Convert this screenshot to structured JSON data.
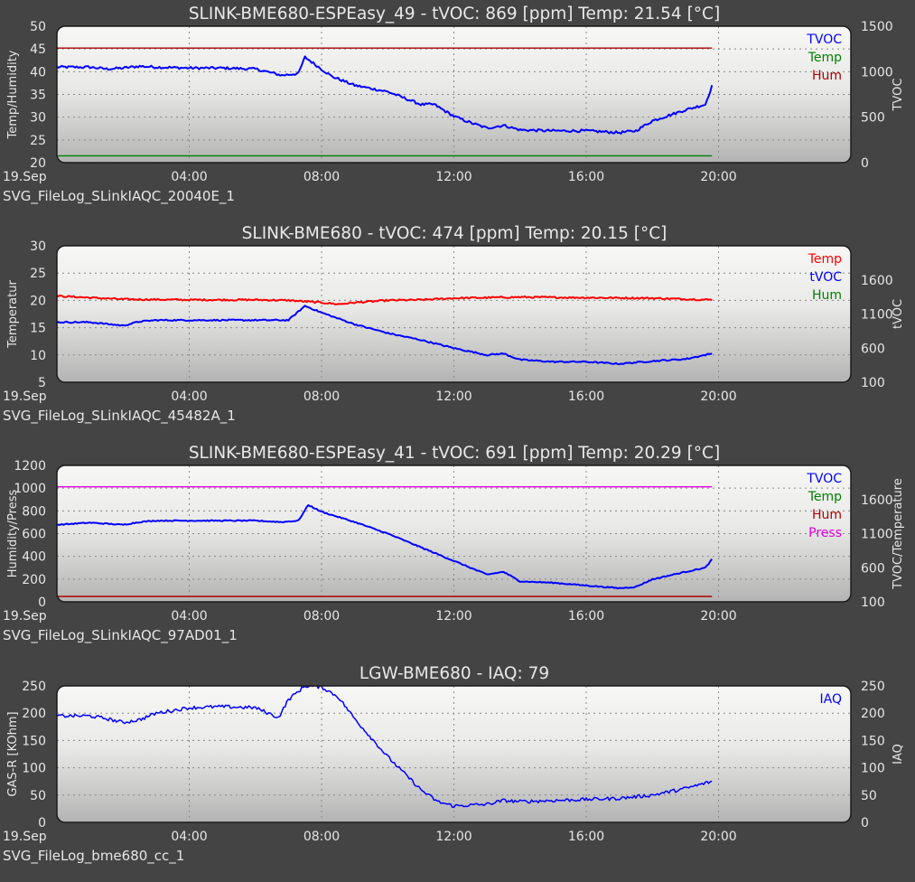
{
  "colors": {
    "page_bg": "#444444",
    "plot_top": "#f7f7f5",
    "plot_bottom": "#b3b3b3",
    "grid": "#888888",
    "text": "#e6e6e6",
    "blue": "#0000ff",
    "green": "#008000",
    "dark_red": "#aa0000",
    "red": "#ff0000",
    "magenta": "#e000e0"
  },
  "chart_data": [
    {
      "type": "line",
      "title": "SLINK-BME680-ESPEasy_49 - tVOC: 869 [ppm] Temp: 21.54 [°C]",
      "filelog": "SVG_FileLog_SLinkIAQC_20040E_1",
      "x_ticks": [
        "19.Sep",
        "04:00",
        "08:00",
        "12:00",
        "16:00",
        "20:00"
      ],
      "xlim": [
        0,
        24
      ],
      "grid": true,
      "legend_placement": "top-right",
      "left_axis": {
        "label": "Temp/Humidity",
        "ylim": [
          20,
          50
        ],
        "ticks": [
          "20",
          "25",
          "30",
          "35",
          "40",
          "45",
          "50"
        ]
      },
      "right_axis": {
        "label": "TVOC",
        "ylim": [
          0,
          1500
        ],
        "ticks": [
          "0",
          "500",
          "1000",
          "1500"
        ]
      },
      "series": [
        {
          "name": "TVOC",
          "color": "#0000ff",
          "axis": "right",
          "noise": 14,
          "width": 2,
          "x": [
            0,
            1,
            1.5,
            2,
            2.5,
            3,
            4,
            5,
            6,
            6.8,
            7.3,
            7.5,
            7.8,
            8.3,
            9,
            10,
            11,
            11.4,
            12,
            12.5,
            13,
            13.5,
            14,
            15,
            16,
            17,
            17.5,
            18,
            18.5,
            19,
            19.6,
            19.8
          ],
          "y": [
            1050,
            1050,
            1030,
            1040,
            1060,
            1050,
            1040,
            1040,
            1030,
            960,
            980,
            1160,
            1080,
            950,
            850,
            780,
            640,
            640,
            510,
            440,
            380,
            410,
            360,
            350,
            350,
            330,
            350,
            460,
            520,
            580,
            640,
            840
          ]
        },
        {
          "name": "Temp",
          "color": "#008000",
          "axis": "left",
          "noise": 0,
          "width": 1.4,
          "x": [
            0,
            19.8
          ],
          "y": [
            21.5,
            21.5
          ]
        },
        {
          "name": "Hum",
          "color": "#aa0000",
          "axis": "left",
          "noise": 0,
          "width": 1.4,
          "x": [
            0,
            19.8
          ],
          "y": [
            45.2,
            45.2
          ]
        }
      ]
    },
    {
      "type": "line",
      "title": "SLINK-BME680 - tVOC: 474 [ppm] Temp: 20.15 [°C]",
      "filelog": "SVG_FileLog_SLinkIAQC_45482A_1",
      "x_ticks": [
        "19.Sep",
        "04:00",
        "08:00",
        "12:00",
        "16:00",
        "20:00"
      ],
      "xlim": [
        0,
        24
      ],
      "grid": true,
      "legend_placement": "top-right",
      "left_axis": {
        "label": "Temperatur",
        "ylim": [
          5,
          30
        ],
        "ticks": [
          "5",
          "10",
          "15",
          "20",
          "25",
          "30"
        ]
      },
      "right_axis": {
        "label": "tVOC",
        "ylim": [
          100,
          2100
        ],
        "ticks": [
          "100",
          "600",
          "1100",
          "1600"
        ]
      },
      "series": [
        {
          "name": "Temp",
          "color": "#ff0000",
          "axis": "left",
          "noise": 0.15,
          "width": 2,
          "x": [
            0,
            1,
            2,
            4,
            6,
            7,
            7.5,
            8,
            8.5,
            9,
            10,
            11,
            12,
            13,
            14,
            16,
            18,
            19.8
          ],
          "y": [
            20.8,
            20.5,
            20.2,
            20.1,
            20.1,
            20.0,
            19.8,
            19.6,
            19.3,
            19.6,
            20.0,
            20.1,
            20.4,
            20.5,
            20.6,
            20.5,
            20.4,
            20.1
          ]
        },
        {
          "name": "tVOC",
          "color": "#0000ff",
          "axis": "right",
          "noise": 10,
          "width": 2,
          "x": [
            0,
            1,
            2,
            2.5,
            3,
            4,
            5,
            6,
            7,
            7.5,
            8,
            9,
            10,
            11,
            12,
            13,
            13.5,
            14,
            15,
            16,
            17,
            17.5,
            18,
            19,
            19.8
          ],
          "y": [
            980,
            980,
            930,
            990,
            1010,
            1010,
            1010,
            1010,
            1010,
            1220,
            1120,
            950,
            820,
            720,
            600,
            500,
            520,
            430,
            400,
            400,
            370,
            390,
            410,
            440,
            520
          ]
        },
        {
          "name": "Hum",
          "color": "#008000",
          "axis": "left",
          "noise": 0,
          "width": 1.4,
          "x": [],
          "y": []
        }
      ]
    },
    {
      "type": "line",
      "title": "SLINK-BME680-ESPEasy_41 - tVOC: 691 [ppm] Temp: 20.29 [°C]",
      "filelog": "SVG_FileLog_SLinkIAQC_97AD01_1",
      "x_ticks": [
        "19.Sep",
        "04:00",
        "08:00",
        "12:00",
        "16:00",
        "20:00"
      ],
      "xlim": [
        0,
        24
      ],
      "grid": true,
      "legend_placement": "top-right",
      "left_axis": {
        "label": "Humidity/Press",
        "ylim": [
          0,
          1200
        ],
        "ticks": [
          "0",
          "200",
          "400",
          "600",
          "800",
          "1000",
          "1200"
        ]
      },
      "right_axis": {
        "label": "TVOC/Temperature",
        "ylim": [
          100,
          2100
        ],
        "ticks": [
          "100",
          "600",
          "1100",
          "1600"
        ]
      },
      "series": [
        {
          "name": "TVOC",
          "color": "#0000ff",
          "axis": "right",
          "noise": 8,
          "width": 2,
          "x": [
            0,
            1,
            2,
            2.5,
            3,
            4,
            5,
            6,
            6.8,
            7.3,
            7.6,
            8,
            9,
            10,
            11,
            12,
            13,
            13.5,
            14,
            15,
            16,
            17,
            17.5,
            18,
            19,
            19.6,
            19.8
          ],
          "y": [
            1230,
            1260,
            1230,
            1270,
            1290,
            1290,
            1290,
            1290,
            1270,
            1290,
            1520,
            1420,
            1270,
            1100,
            900,
            700,
            500,
            540,
            400,
            380,
            340,
            300,
            320,
            430,
            540,
            600,
            720
          ]
        },
        {
          "name": "Temp",
          "color": "#008000",
          "axis": "right",
          "noise": 0,
          "width": 1.4,
          "x": [],
          "y": []
        },
        {
          "name": "Hum",
          "color": "#aa0000",
          "axis": "left",
          "noise": 0,
          "width": 1.4,
          "x": [
            0,
            19.8
          ],
          "y": [
            48,
            48
          ]
        },
        {
          "name": "Press",
          "color": "#e000e0",
          "axis": "left",
          "noise": 0,
          "width": 1.4,
          "x": [
            0,
            19.8
          ],
          "y": [
            1012,
            1012
          ]
        }
      ]
    },
    {
      "type": "line",
      "title": "LGW-BME680 - IAQ: 79",
      "filelog": "SVG_FileLog_bme680_cc_1",
      "x_ticks": [
        "19.Sep",
        "04:00",
        "08:00",
        "12:00",
        "16:00",
        "20:00"
      ],
      "xlim": [
        0,
        24
      ],
      "grid": true,
      "legend_placement": "top-right",
      "left_axis": {
        "label": "GAS-R [KOhm]",
        "ylim": [
          0,
          250
        ],
        "ticks": [
          "0",
          "50",
          "100",
          "150",
          "200",
          "250"
        ]
      },
      "right_axis": {
        "label": "IAQ",
        "ylim": [
          0,
          250
        ],
        "ticks": [
          "0",
          "50",
          "100",
          "150",
          "200",
          "250"
        ]
      },
      "series": [
        {
          "name": "IAQ",
          "color": "#0000ff",
          "axis": "right",
          "noise": 3.2,
          "width": 1.5,
          "x": [
            0,
            1,
            1.5,
            2,
            2.5,
            3,
            4,
            5,
            6,
            6.7,
            7,
            7.5,
            8,
            8.5,
            9,
            10,
            11,
            11.5,
            12,
            13,
            13.5,
            14,
            15,
            16,
            17,
            18,
            19,
            19.8
          ],
          "y": [
            195,
            195,
            190,
            183,
            188,
            200,
            210,
            212,
            210,
            192,
            225,
            250,
            248,
            230,
            190,
            120,
            60,
            38,
            30,
            33,
            40,
            38,
            40,
            42,
            44,
            50,
            62,
            75
          ]
        }
      ]
    }
  ]
}
